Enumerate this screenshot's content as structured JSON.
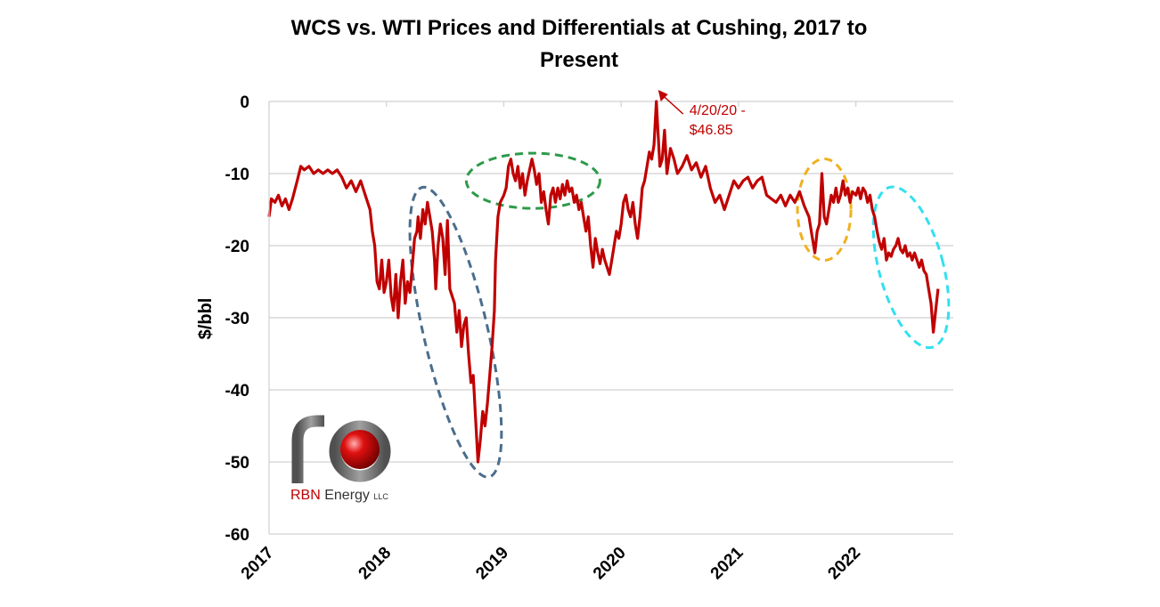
{
  "chart_data": {
    "type": "line",
    "title_line1": "WCS vs. WTI Prices and Differentials at Cushing, 2017 to",
    "title_line2": "Present",
    "ylabel": "$/bbl",
    "xlabel": "",
    "ylim": [
      -60,
      0
    ],
    "yticks": [
      "0",
      "-10",
      "-20",
      "-30",
      "-40",
      "-50",
      "-60"
    ],
    "ytick_values": [
      0,
      -10,
      -20,
      -30,
      -40,
      -50,
      -60
    ],
    "xticks": [
      "2017",
      "2018",
      "2019",
      "2020",
      "2021",
      "2022"
    ],
    "xlim": [
      2017.0,
      2022.83
    ],
    "grid": true,
    "series": [
      {
        "color": "#c00000",
        "points": [
          [
            2017.0,
            -16
          ],
          [
            2017.02,
            -13.5
          ],
          [
            2017.05,
            -14
          ],
          [
            2017.08,
            -13
          ],
          [
            2017.11,
            -14.5
          ],
          [
            2017.14,
            -13.5
          ],
          [
            2017.17,
            -15
          ],
          [
            2017.2,
            -13.5
          ],
          [
            2017.24,
            -11
          ],
          [
            2017.27,
            -9
          ],
          [
            2017.3,
            -9.5
          ],
          [
            2017.34,
            -9
          ],
          [
            2017.38,
            -10
          ],
          [
            2017.42,
            -9.5
          ],
          [
            2017.46,
            -10
          ],
          [
            2017.5,
            -9.5
          ],
          [
            2017.54,
            -10
          ],
          [
            2017.58,
            -9.5
          ],
          [
            2017.62,
            -10.5
          ],
          [
            2017.66,
            -12
          ],
          [
            2017.7,
            -11
          ],
          [
            2017.74,
            -12.5
          ],
          [
            2017.78,
            -11
          ],
          [
            2017.82,
            -13
          ],
          [
            2017.86,
            -15
          ],
          [
            2017.88,
            -18
          ],
          [
            2017.9,
            -20
          ],
          [
            2017.92,
            -25
          ],
          [
            2017.94,
            -26
          ],
          [
            2017.96,
            -22
          ],
          [
            2017.98,
            -26.5
          ],
          [
            2018.0,
            -25
          ],
          [
            2018.02,
            -22
          ],
          [
            2018.04,
            -27
          ],
          [
            2018.06,
            -29
          ],
          [
            2018.08,
            -24
          ],
          [
            2018.1,
            -30
          ],
          [
            2018.12,
            -25
          ],
          [
            2018.14,
            -22
          ],
          [
            2018.16,
            -28
          ],
          [
            2018.18,
            -25
          ],
          [
            2018.2,
            -26.5
          ],
          [
            2018.22,
            -23
          ],
          [
            2018.24,
            -19
          ],
          [
            2018.26,
            -18
          ],
          [
            2018.27,
            -16
          ],
          [
            2018.29,
            -19
          ],
          [
            2018.31,
            -15
          ],
          [
            2018.33,
            -17
          ],
          [
            2018.35,
            -14
          ],
          [
            2018.37,
            -16
          ],
          [
            2018.39,
            -18
          ],
          [
            2018.41,
            -22
          ],
          [
            2018.42,
            -26
          ],
          [
            2018.44,
            -20
          ],
          [
            2018.46,
            -17
          ],
          [
            2018.48,
            -19
          ],
          [
            2018.5,
            -24
          ],
          [
            2018.52,
            -16.5
          ],
          [
            2018.54,
            -26
          ],
          [
            2018.56,
            -27
          ],
          [
            2018.58,
            -28
          ],
          [
            2018.6,
            -32
          ],
          [
            2018.62,
            -29
          ],
          [
            2018.64,
            -34
          ],
          [
            2018.66,
            -31
          ],
          [
            2018.68,
            -30
          ],
          [
            2018.7,
            -35
          ],
          [
            2018.72,
            -39
          ],
          [
            2018.74,
            -38
          ],
          [
            2018.76,
            -44
          ],
          [
            2018.78,
            -50
          ],
          [
            2018.8,
            -47
          ],
          [
            2018.82,
            -43
          ],
          [
            2018.84,
            -45
          ],
          [
            2018.86,
            -42
          ],
          [
            2018.88,
            -38
          ],
          [
            2018.9,
            -34
          ],
          [
            2018.92,
            -29
          ],
          [
            2018.93,
            -22
          ],
          [
            2018.95,
            -16
          ],
          [
            2018.97,
            -14
          ],
          [
            2019.0,
            -13
          ],
          [
            2019.02,
            -12
          ],
          [
            2019.04,
            -9
          ],
          [
            2019.06,
            -8
          ],
          [
            2019.08,
            -10
          ],
          [
            2019.1,
            -11
          ],
          [
            2019.12,
            -9
          ],
          [
            2019.14,
            -12
          ],
          [
            2019.16,
            -10
          ],
          [
            2019.18,
            -13
          ],
          [
            2019.2,
            -11
          ],
          [
            2019.22,
            -9.5
          ],
          [
            2019.24,
            -8
          ],
          [
            2019.26,
            -9.5
          ],
          [
            2019.28,
            -11.5
          ],
          [
            2019.3,
            -10
          ],
          [
            2019.32,
            -14
          ],
          [
            2019.34,
            -12.5
          ],
          [
            2019.36,
            -15
          ],
          [
            2019.38,
            -17
          ],
          [
            2019.4,
            -13
          ],
          [
            2019.42,
            -12
          ],
          [
            2019.44,
            -14
          ],
          [
            2019.46,
            -12
          ],
          [
            2019.48,
            -13.5
          ],
          [
            2019.5,
            -11.5
          ],
          [
            2019.52,
            -13
          ],
          [
            2019.54,
            -11
          ],
          [
            2019.56,
            -12.5
          ],
          [
            2019.58,
            -12
          ],
          [
            2019.6,
            -14
          ],
          [
            2019.62,
            -13
          ],
          [
            2019.64,
            -15
          ],
          [
            2019.66,
            -14
          ],
          [
            2019.68,
            -16
          ],
          [
            2019.7,
            -18
          ],
          [
            2019.72,
            -16
          ],
          [
            2019.74,
            -20
          ],
          [
            2019.76,
            -23
          ],
          [
            2019.78,
            -19
          ],
          [
            2019.8,
            -21
          ],
          [
            2019.82,
            -22.5
          ],
          [
            2019.84,
            -20.5
          ],
          [
            2019.86,
            -22
          ],
          [
            2019.88,
            -23
          ],
          [
            2019.9,
            -24
          ],
          [
            2019.92,
            -22
          ],
          [
            2019.94,
            -20
          ],
          [
            2019.96,
            -18
          ],
          [
            2019.98,
            -19
          ],
          [
            2020.0,
            -17
          ],
          [
            2020.02,
            -14
          ],
          [
            2020.04,
            -13
          ],
          [
            2020.06,
            -15
          ],
          [
            2020.08,
            -16
          ],
          [
            2020.1,
            -14
          ],
          [
            2020.12,
            -17
          ],
          [
            2020.14,
            -19
          ],
          [
            2020.16,
            -16
          ],
          [
            2020.18,
            -12
          ],
          [
            2020.2,
            -11
          ],
          [
            2020.22,
            -9
          ],
          [
            2020.24,
            -7
          ],
          [
            2020.26,
            -8
          ],
          [
            2020.28,
            -6
          ],
          [
            2020.3,
            0
          ],
          [
            2020.31,
            -3
          ],
          [
            2020.33,
            -9
          ],
          [
            2020.35,
            -8
          ],
          [
            2020.37,
            -4
          ],
          [
            2020.39,
            -10
          ],
          [
            2020.42,
            -6.5
          ],
          [
            2020.45,
            -8
          ],
          [
            2020.48,
            -10
          ],
          [
            2020.52,
            -9
          ],
          [
            2020.56,
            -7.5
          ],
          [
            2020.6,
            -9.5
          ],
          [
            2020.64,
            -8.5
          ],
          [
            2020.68,
            -10.5
          ],
          [
            2020.72,
            -9
          ],
          [
            2020.76,
            -12
          ],
          [
            2020.8,
            -14
          ],
          [
            2020.84,
            -13
          ],
          [
            2020.88,
            -15
          ],
          [
            2020.92,
            -13
          ],
          [
            2020.96,
            -11
          ],
          [
            2021.0,
            -12
          ],
          [
            2021.04,
            -11
          ],
          [
            2021.08,
            -10.5
          ],
          [
            2021.12,
            -12
          ],
          [
            2021.16,
            -11
          ],
          [
            2021.2,
            -10.5
          ],
          [
            2021.24,
            -13
          ],
          [
            2021.28,
            -13.5
          ],
          [
            2021.32,
            -14
          ],
          [
            2021.36,
            -13
          ],
          [
            2021.4,
            -14.5
          ],
          [
            2021.44,
            -13
          ],
          [
            2021.48,
            -14
          ],
          [
            2021.52,
            -12.5
          ],
          [
            2021.56,
            -14.5
          ],
          [
            2021.6,
            -16
          ],
          [
            2021.63,
            -19
          ],
          [
            2021.65,
            -21
          ],
          [
            2021.67,
            -18
          ],
          [
            2021.69,
            -17
          ],
          [
            2021.71,
            -10
          ],
          [
            2021.73,
            -16
          ],
          [
            2021.75,
            -17
          ],
          [
            2021.77,
            -15
          ],
          [
            2021.79,
            -13
          ],
          [
            2021.81,
            -14
          ],
          [
            2021.83,
            -12
          ],
          [
            2021.85,
            -14
          ],
          [
            2021.87,
            -13
          ],
          [
            2021.89,
            -11
          ],
          [
            2021.91,
            -13
          ],
          [
            2021.93,
            -12
          ],
          [
            2021.95,
            -14
          ],
          [
            2021.97,
            -12.5
          ],
          [
            2022.0,
            -13
          ],
          [
            2022.02,
            -12
          ],
          [
            2022.04,
            -13.5
          ],
          [
            2022.06,
            -12
          ],
          [
            2022.08,
            -12.5
          ],
          [
            2022.1,
            -14
          ],
          [
            2022.12,
            -13
          ],
          [
            2022.14,
            -15
          ],
          [
            2022.16,
            -16
          ],
          [
            2022.18,
            -18
          ],
          [
            2022.2,
            -19.5
          ],
          [
            2022.22,
            -20.5
          ],
          [
            2022.24,
            -19
          ],
          [
            2022.26,
            -22
          ],
          [
            2022.28,
            -21
          ],
          [
            2022.3,
            -21.5
          ],
          [
            2022.32,
            -20.5
          ],
          [
            2022.34,
            -20
          ],
          [
            2022.36,
            -19
          ],
          [
            2022.38,
            -20.5
          ],
          [
            2022.4,
            -21
          ],
          [
            2022.42,
            -20
          ],
          [
            2022.44,
            -21.5
          ],
          [
            2022.46,
            -21
          ],
          [
            2022.48,
            -22
          ],
          [
            2022.5,
            -21
          ],
          [
            2022.52,
            -22
          ],
          [
            2022.54,
            -23
          ],
          [
            2022.56,
            -22
          ],
          [
            2022.58,
            -23.5
          ],
          [
            2022.6,
            -24
          ],
          [
            2022.62,
            -26
          ],
          [
            2022.64,
            -28
          ],
          [
            2022.66,
            -32
          ],
          [
            2022.68,
            -29
          ],
          [
            2022.7,
            -26
          ]
        ]
      }
    ],
    "annotations": [
      {
        "text_line1": "4/20/20 -",
        "text_line2": "$46.85",
        "color": "#c00000"
      }
    ],
    "highlight_ellipses": [
      {
        "color": "#4a6d8c",
        "x_center": 2018.59,
        "y_center": -32
      },
      {
        "color": "#2e9a4a",
        "x_center": 2019.25,
        "y_center": -11
      },
      {
        "color": "#f0b020",
        "x_center": 2021.73,
        "y_center": -15
      },
      {
        "color": "#33e0f0",
        "x_center": 2022.47,
        "y_center": -23
      }
    ]
  },
  "logo": {
    "name_prefix": "RBN",
    "name_rest": " Energy",
    "suffix": "LLC",
    "sphere_color": "#e01010",
    "tube_color": "#707070"
  }
}
